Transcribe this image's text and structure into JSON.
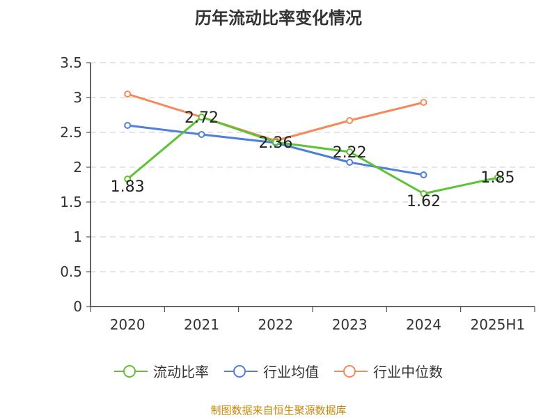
{
  "title": "历年流动比率变化情况",
  "source": "制图数据来自恒生聚源数据库",
  "chart_data": {
    "type": "line",
    "categories": [
      "2020",
      "2021",
      "2022",
      "2023",
      "2024",
      "2025H1"
    ],
    "ylim": [
      0,
      3.5
    ],
    "yticks": [
      "0",
      "0.5",
      "1",
      "1.5",
      "2",
      "2.5",
      "3",
      "3.5"
    ],
    "grid": true,
    "legend_position": "bottom",
    "series": [
      {
        "name": "流动比率",
        "color": "#5cc334",
        "values": [
          1.83,
          2.72,
          2.36,
          2.22,
          1.62,
          1.85
        ],
        "labels": [
          "1.83",
          "2.72",
          "2.36",
          "2.22",
          "1.62",
          "1.85"
        ]
      },
      {
        "name": "行业均值",
        "color": "#4f7fd8",
        "values": [
          2.6,
          2.47,
          2.35,
          2.07,
          1.89,
          null
        ],
        "labels": null
      },
      {
        "name": "行业中位数",
        "color": "#f5895a",
        "values": [
          3.05,
          2.72,
          2.38,
          2.67,
          2.93,
          null
        ],
        "labels": null
      }
    ]
  }
}
